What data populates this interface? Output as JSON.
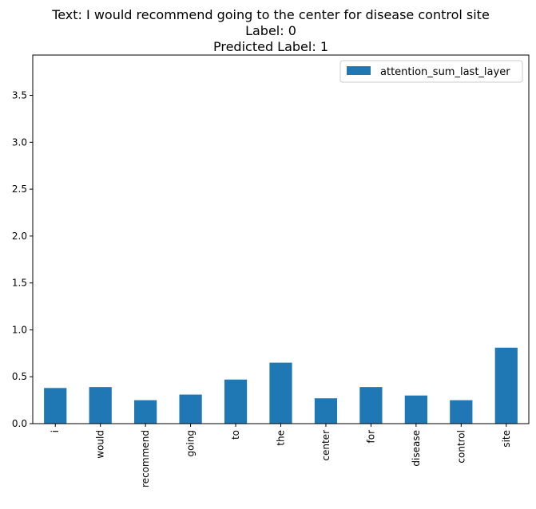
{
  "chart_data": {
    "type": "bar",
    "title_lines": [
      "Text: I would recommend going to the center for disease control site",
      "Label: 0",
      "Predicted Label: 1"
    ],
    "categories": [
      "i",
      "would",
      "recommend",
      "going",
      "to",
      "the",
      "center",
      "for",
      "disease",
      "control",
      "site"
    ],
    "series": [
      {
        "name": "attention_sum_last_layer",
        "color": "#1f77b4",
        "values": [
          0.38,
          0.39,
          0.25,
          0.31,
          0.47,
          0.65,
          0.27,
          0.39,
          0.3,
          0.25,
          0.81
        ]
      }
    ],
    "ylim": [
      0,
      3.93
    ],
    "yticks": [
      0.0,
      0.5,
      1.0,
      1.5,
      2.0,
      2.5,
      3.0,
      3.5
    ],
    "ytick_labels": [
      "0.0",
      "0.5",
      "1.0",
      "1.5",
      "2.0",
      "2.5",
      "3.0",
      "3.5"
    ],
    "xlabel": "",
    "ylabel": "",
    "grid": false,
    "legend_position": "upper right"
  }
}
